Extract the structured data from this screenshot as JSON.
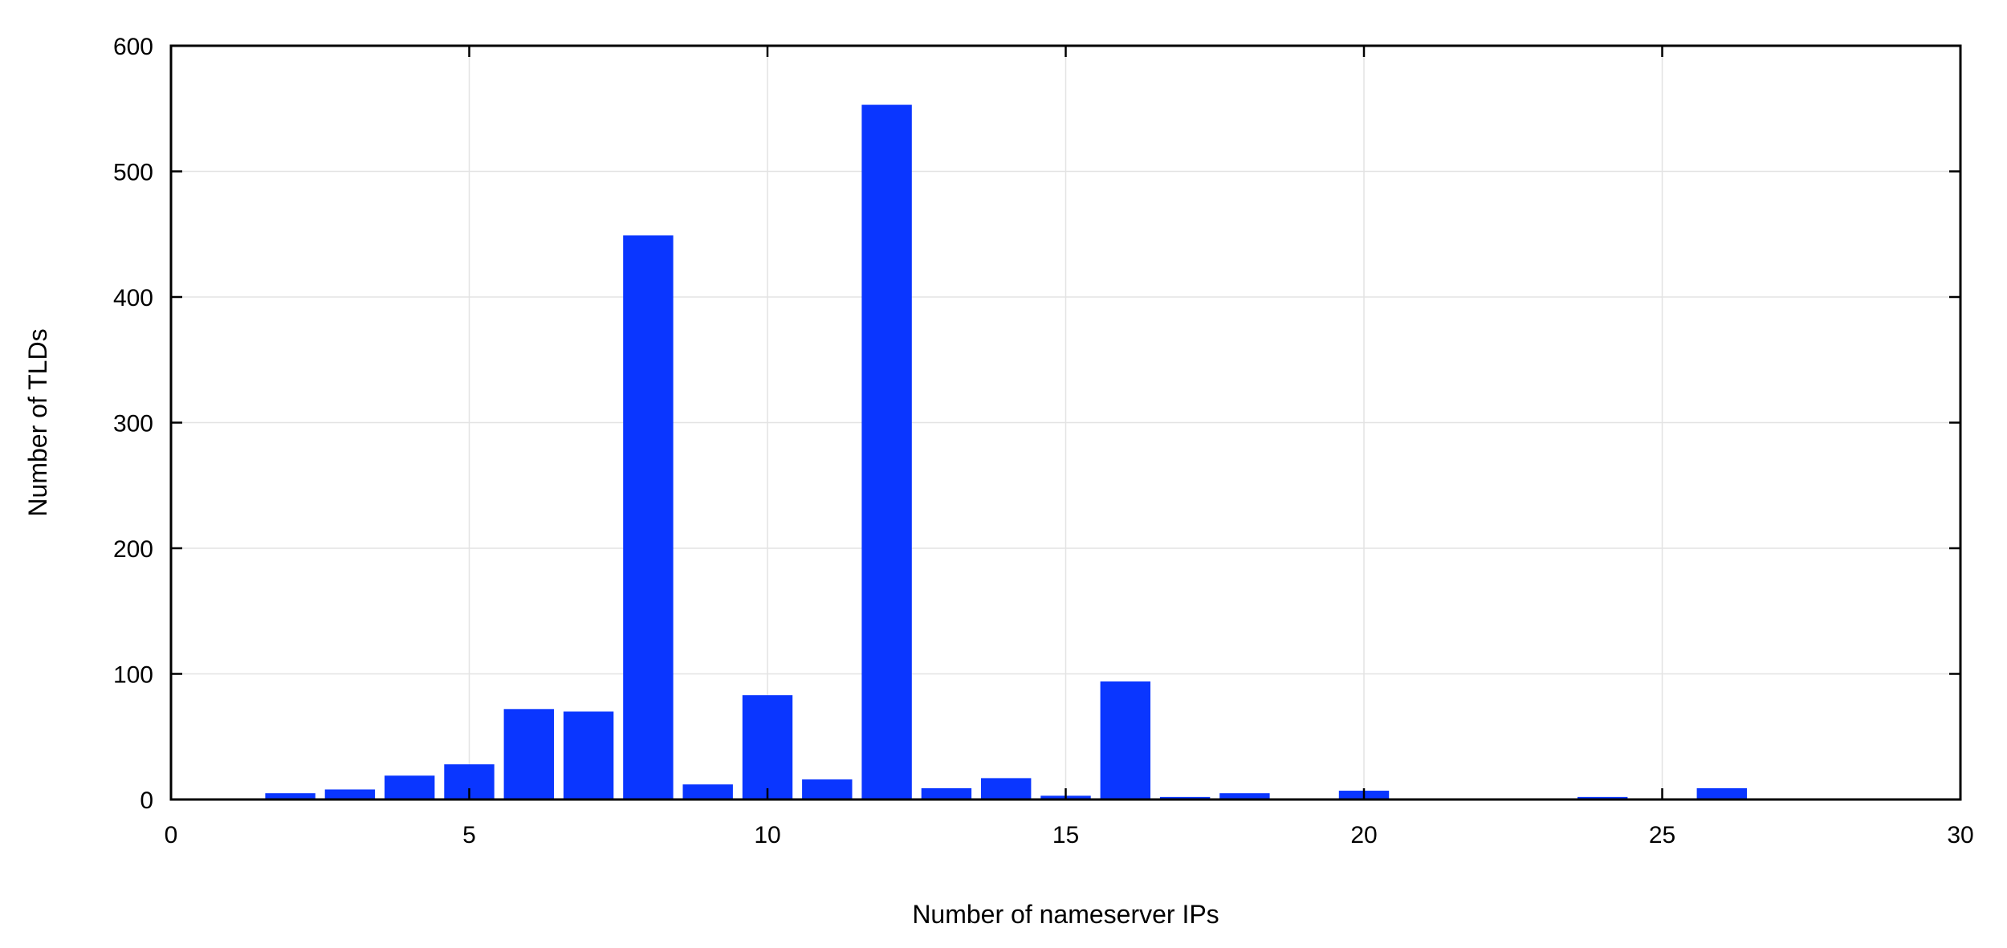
{
  "chart_data": {
    "type": "bar",
    "title": "",
    "xlabel": "Number of nameserver IPs",
    "ylabel": "Number of TLDs",
    "xlim": [
      0,
      30
    ],
    "ylim": [
      0,
      600
    ],
    "x_ticks": [
      0,
      5,
      10,
      15,
      20,
      25,
      30
    ],
    "y_ticks": [
      0,
      100,
      200,
      300,
      400,
      500,
      600
    ],
    "grid": true,
    "bar_color": "#0a36ff",
    "x": [
      2,
      3,
      4,
      5,
      6,
      7,
      8,
      9,
      10,
      11,
      12,
      13,
      14,
      15,
      16,
      17,
      18,
      20,
      24,
      26
    ],
    "values": [
      5,
      8,
      19,
      28,
      72,
      70,
      449,
      12,
      83,
      16,
      553,
      9,
      17,
      3,
      94,
      2,
      5,
      7,
      2,
      9
    ]
  }
}
